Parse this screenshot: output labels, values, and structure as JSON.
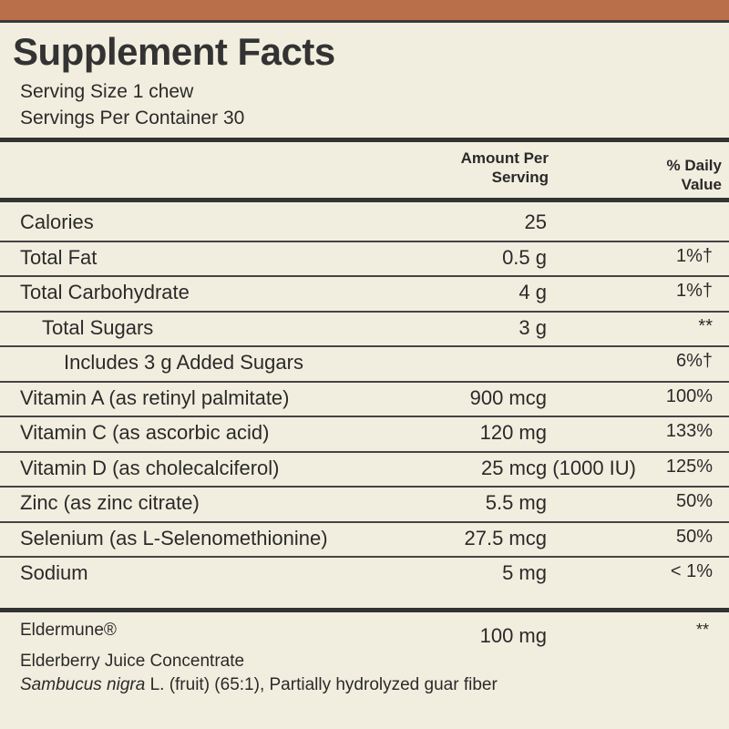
{
  "header": {
    "title": "Supplement Facts",
    "serving_size": "Serving Size 1 chew",
    "servings": "Servings Per Container 30"
  },
  "table": {
    "columns": [
      "Amount Per Serving",
      "% Daily Value"
    ],
    "rows": [
      {
        "name": "Calories",
        "amount": "25",
        "dv": "",
        "indent": 0
      },
      {
        "name": "Total Fat",
        "amount": "0.5 g",
        "dv": "1%†",
        "indent": 0
      },
      {
        "name": "Total Carbohydrate",
        "amount": "4 g",
        "dv": "1%†",
        "indent": 0
      },
      {
        "name": "Total Sugars",
        "amount": "3 g",
        "dv": "**",
        "indent": 1
      },
      {
        "name": "Includes 3 g Added Sugars",
        "amount": "",
        "dv": "6%†",
        "indent": 2
      },
      {
        "name": "Vitamin A (as retinyl palmitate)",
        "amount": "900 mcg",
        "dv": "100%",
        "indent": 0
      },
      {
        "name": "Vitamin C (as ascorbic acid)",
        "amount": "120 mg",
        "dv": "133%",
        "indent": 0
      },
      {
        "name": "Vitamin D (as cholecalciferol)",
        "amount": "25 mcg (1000 IU)",
        "dv": "125%",
        "indent": 0
      },
      {
        "name": "Zinc (as zinc citrate)",
        "amount": "5.5 mg",
        "dv": "50%",
        "indent": 0
      },
      {
        "name": "Selenium (as L-Selenomethionine)",
        "amount": "27.5 mcg",
        "dv": "50%",
        "indent": 0
      },
      {
        "name": "Sodium",
        "amount": "5 mg",
        "dv": "< 1%",
        "indent": 0
      }
    ]
  },
  "blend": {
    "name": "Eldermune®",
    "amount": "100 mg",
    "dv": "**",
    "line1": "Elderberry Juice Concentrate",
    "species": "Sambucus nigra",
    "line2": " L. (fruit) (65:1), Partially hydrolyzed guar fiber"
  }
}
